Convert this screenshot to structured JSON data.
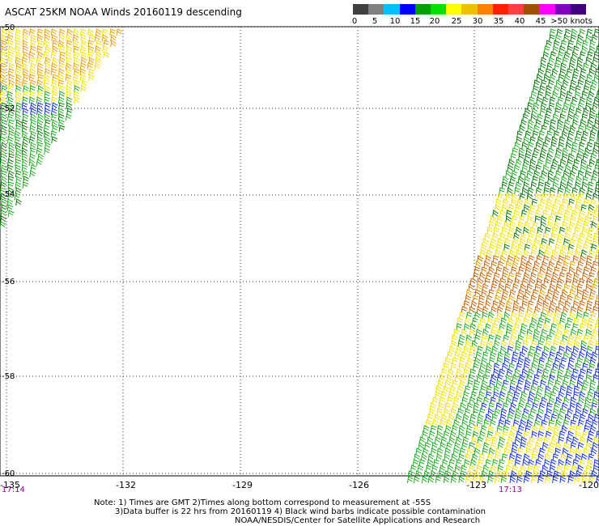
{
  "title": "ASCAT 25KM NOAA Winds 20160119 descending",
  "legend": {
    "colors": [
      "#404040",
      "#808080",
      "#00c0ff",
      "#0000ff",
      "#00a000",
      "#00e000",
      "#ffff00",
      "#f0c000",
      "#ff8000",
      "#ff2000",
      "#ff4040",
      "#a05000",
      "#ff00ff",
      "#8000c0",
      "#400080"
    ],
    "labels": [
      "0",
      "5",
      "10",
      "15",
      "20",
      "25",
      "30",
      "35",
      "40",
      "45",
      ">50 knots"
    ]
  },
  "axes": {
    "x_ticks": [
      "-135",
      "-132",
      "-129",
      "-126",
      "-123",
      "-120"
    ],
    "y_ticks": [
      "-50",
      "-52",
      "-54",
      "-56",
      "-58",
      "-60"
    ],
    "time_labels": [
      "17:14",
      "17:13"
    ]
  },
  "swaths": {
    "left": {
      "time": "17:14",
      "colors": [
        "yellow",
        "orange",
        "green"
      ]
    },
    "right": {
      "time": "17:13",
      "colors": [
        "green",
        "yellow",
        "orange",
        "blue"
      ]
    }
  },
  "notes": {
    "line1": "Note: 1) Times are GMT 2)Times along bottom correspond to measurement at -55S",
    "line2": "3)Data buffer is 22 hrs from 20160119 4) Black wind barbs indicate possible contamination",
    "line3": "NOAA/NESDIS/Center for Satellite Applications and Research"
  }
}
